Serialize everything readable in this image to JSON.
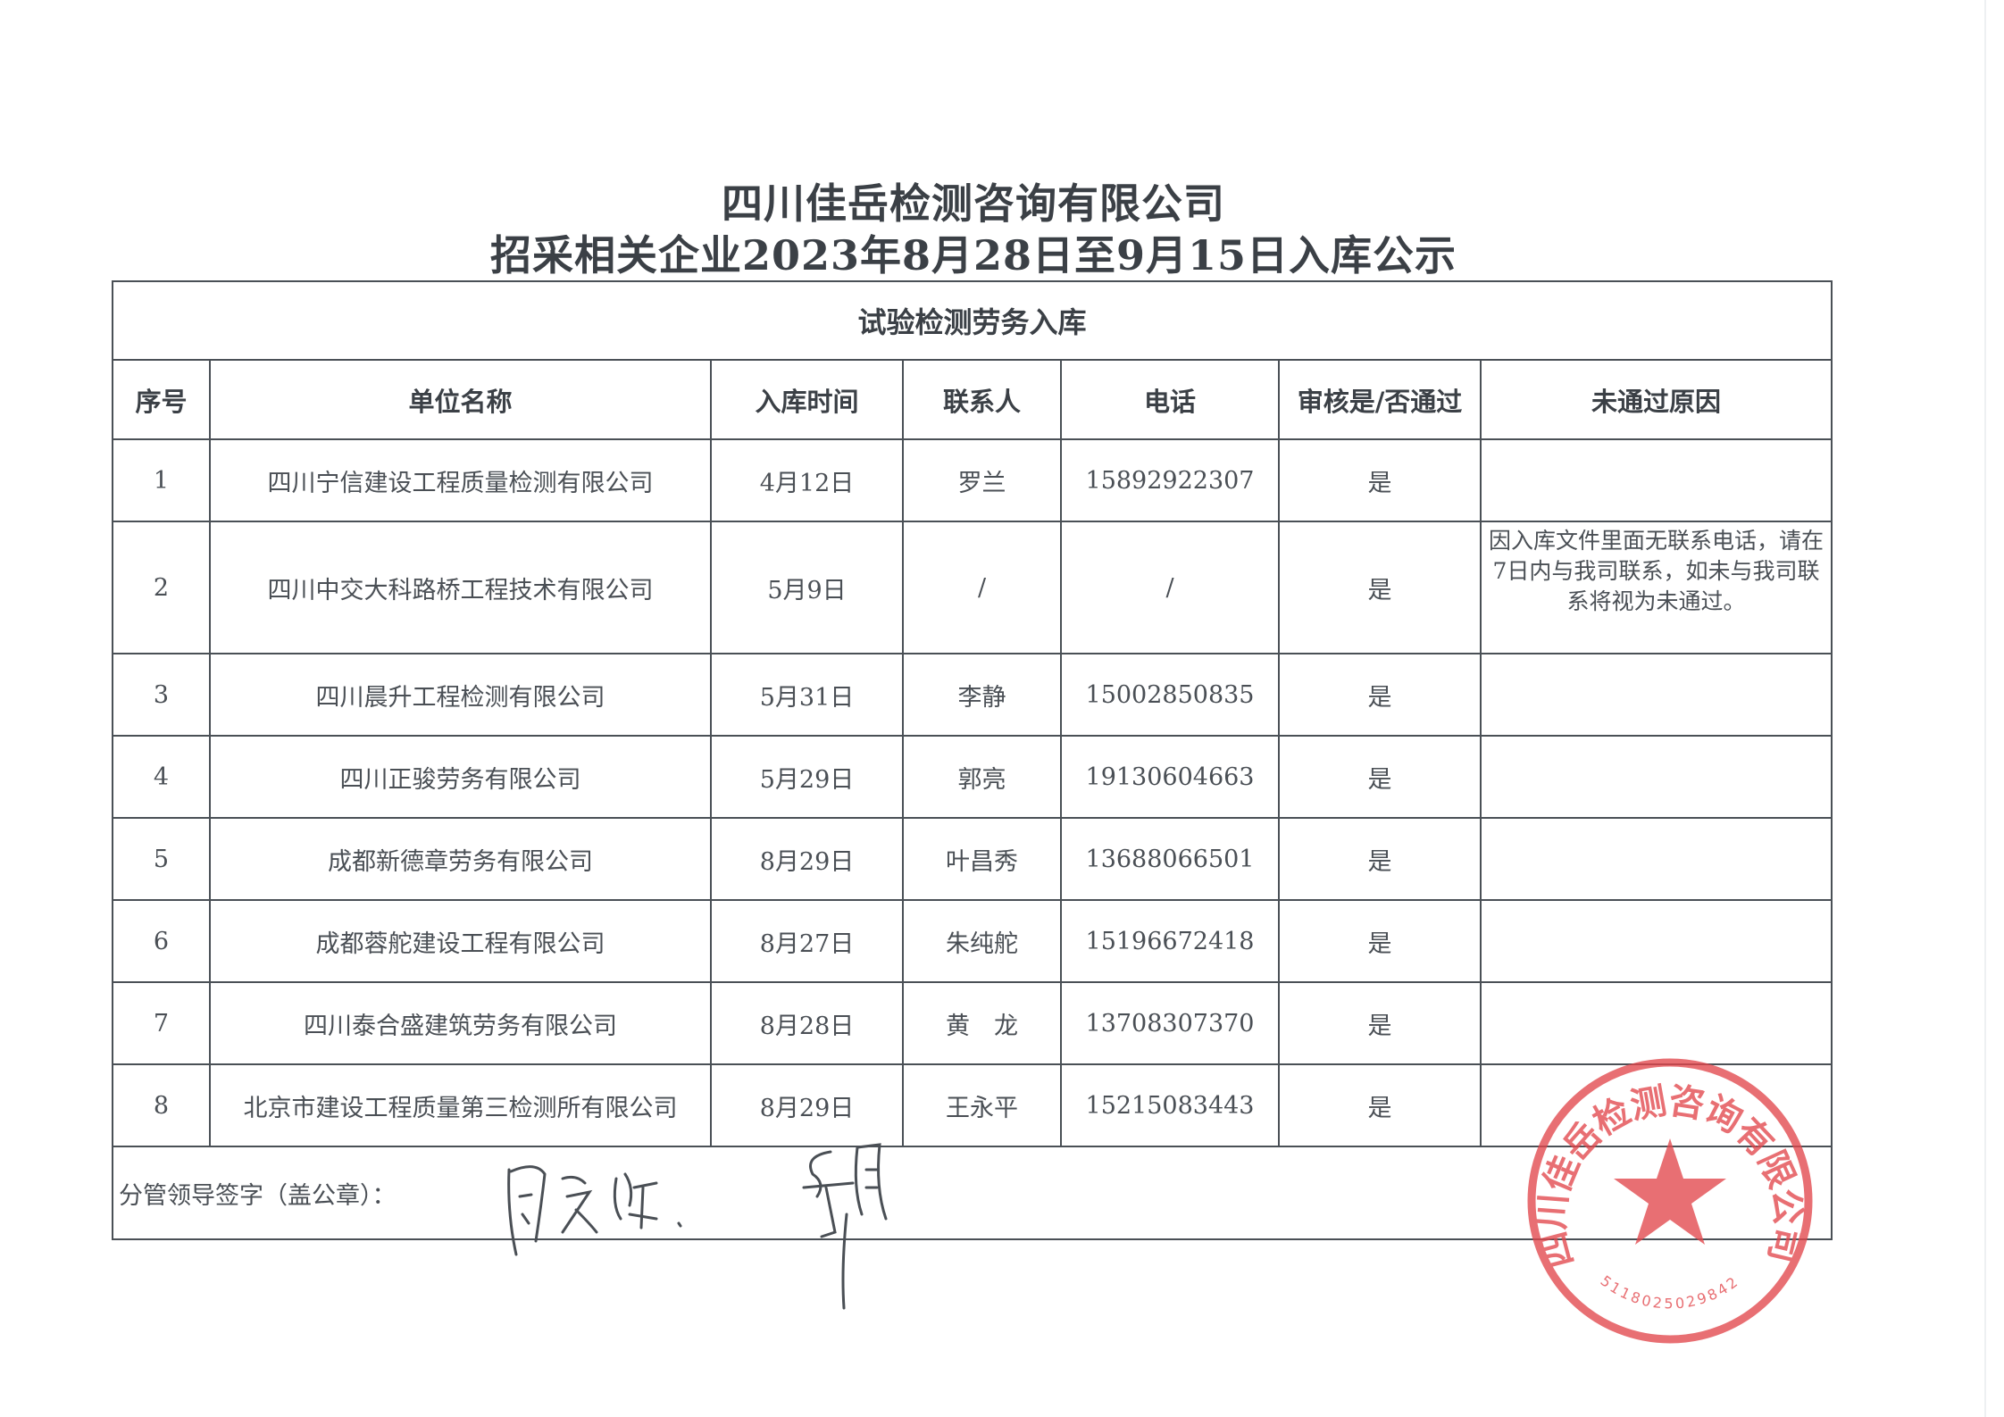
{
  "header": {
    "title": "四川佳岳检测咨询有限公司",
    "subtitle": "招采相关企业2023年8月28日至9月15日入库公示"
  },
  "table": {
    "section_title": "试验检测劳务入库",
    "columns": [
      "序号",
      "单位名称",
      "入库时间",
      "联系人",
      "电话",
      "审核是/否通过",
      "未通过原因"
    ],
    "rows": [
      {
        "no": "1",
        "name": "四川宁信建设工程质量检测有限公司",
        "date": "4月12日",
        "contact": "罗兰",
        "phone": "15892922307",
        "approved": "是",
        "reason": ""
      },
      {
        "no": "2",
        "name": "四川中交大科路桥工程技术有限公司",
        "date": "5月9日",
        "contact": "/",
        "phone": "/",
        "approved": "是",
        "reason": "因入库文件里面无联系电话，请在7日内与我司联系，如未与我司联系将视为未通过。"
      },
      {
        "no": "3",
        "name": "四川晨升工程检测有限公司",
        "date": "5月31日",
        "contact": "李静",
        "phone": "15002850835",
        "approved": "是",
        "reason": ""
      },
      {
        "no": "4",
        "name": "四川正骏劳务有限公司",
        "date": "5月29日",
        "contact": "郭亮",
        "phone": "19130604663",
        "approved": "是",
        "reason": ""
      },
      {
        "no": "5",
        "name": "成都新德章劳务有限公司",
        "date": "8月29日",
        "contact": "叶昌秀",
        "phone": "13688066501",
        "approved": "是",
        "reason": ""
      },
      {
        "no": "6",
        "name": "成都蓉舵建设工程有限公司",
        "date": "8月27日",
        "contact": "朱纯舵",
        "phone": "15196672418",
        "approved": "是",
        "reason": ""
      },
      {
        "no": "7",
        "name": "四川泰合盛建筑劳务有限公司",
        "date": "8月28日",
        "contact": "黄　龙",
        "phone": "13708307370",
        "approved": "是",
        "reason": ""
      },
      {
        "no": "8",
        "name": "北京市建设工程质量第三检测所有限公司",
        "date": "8月29日",
        "contact": "王永平",
        "phone": "15215083443",
        "approved": "是",
        "reason": ""
      }
    ],
    "signature_label": "分管领导签字（盖公章）："
  },
  "stamp": {
    "text": "四川佳岳检测咨询有限公司",
    "code": "5118025029842",
    "color": "#e2474c"
  }
}
